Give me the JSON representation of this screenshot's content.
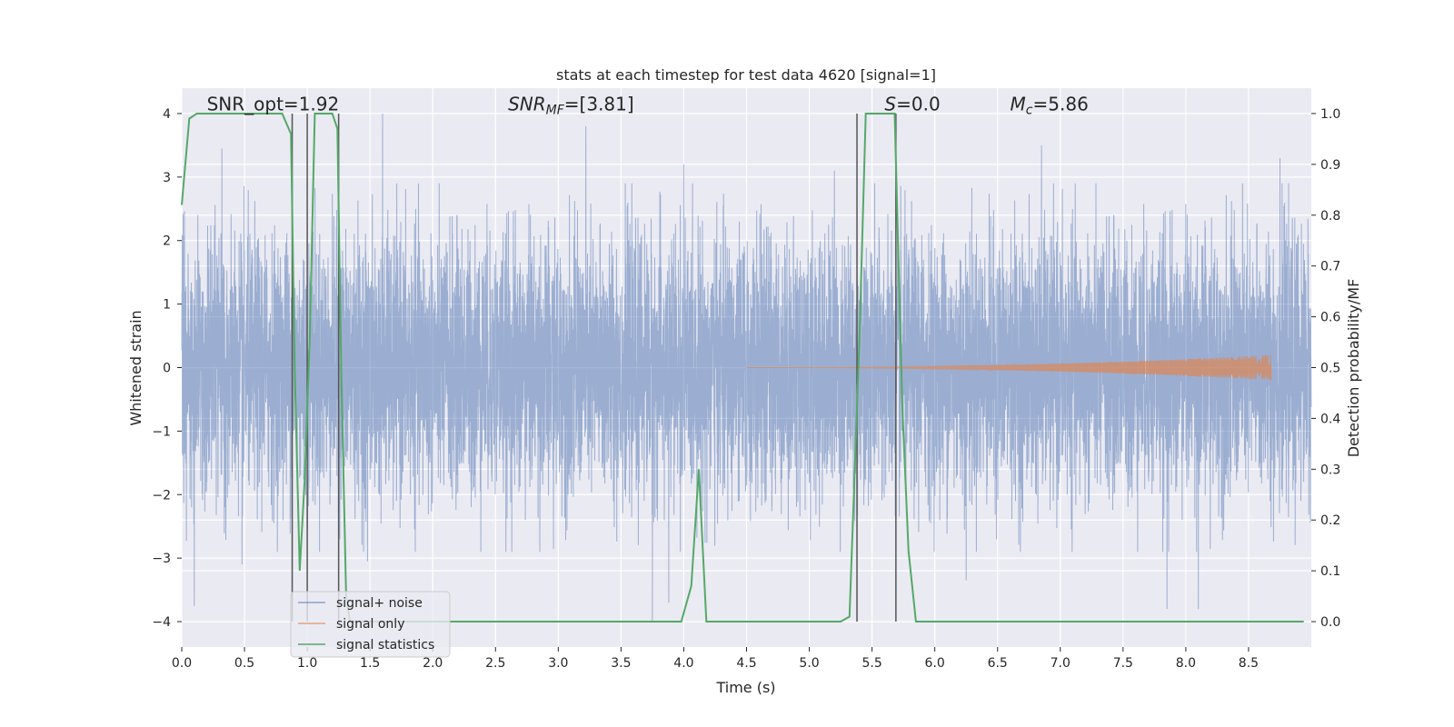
{
  "chart_data": {
    "type": "line",
    "title": "stats at each timestep for test data 4620 [signal=1]",
    "xlabel": "Time (s)",
    "ylabel": "Whitened strain",
    "ylabel_right": "Detection probability/MF",
    "xlim": [
      0,
      9
    ],
    "ylim": [
      -4.4,
      4.4
    ],
    "ylim_right": [
      -0.05,
      1.05
    ],
    "x_ticks": [
      0.0,
      0.5,
      1.0,
      1.5,
      2.0,
      2.5,
      3.0,
      3.5,
      4.0,
      4.5,
      5.0,
      5.5,
      6.0,
      6.5,
      7.0,
      7.5,
      8.0,
      8.5
    ],
    "x_tick_labels": [
      "0.0",
      "0.5",
      "1.0",
      "1.5",
      "2.0",
      "2.5",
      "3.0",
      "3.5",
      "4.0",
      "4.5",
      "5.0",
      "5.5",
      "6.0",
      "6.5",
      "7.0",
      "7.5",
      "8.0",
      "8.5"
    ],
    "y_ticks": [
      -4,
      -3,
      -2,
      -1,
      0,
      1,
      2,
      3,
      4
    ],
    "y_tick_labels": [
      "−4",
      "−3",
      "−2",
      "−1",
      "0",
      "1",
      "2",
      "3",
      "4"
    ],
    "y_ticks_right": [
      0.0,
      0.1,
      0.2,
      0.3,
      0.4,
      0.5,
      0.6,
      0.7,
      0.8,
      0.9,
      1.0
    ],
    "y_tick_labels_right": [
      "0.0",
      "0.1",
      "0.2",
      "0.3",
      "0.4",
      "0.5",
      "0.6",
      "0.7",
      "0.8",
      "0.9",
      "1.0"
    ],
    "grid": true,
    "legend_position": "lower-left",
    "annotations": [
      {
        "text": "SNR_opt=1.92",
        "x": 0.2,
        "y": 4.05
      },
      {
        "text": "SNR_MF=[3.81]",
        "x": 2.6,
        "y": 4.05
      },
      {
        "text": "S=0.0",
        "x": 5.6,
        "y": 4.05
      },
      {
        "text": "M_c=5.86",
        "x": 6.6,
        "y": 4.05
      }
    ],
    "series": [
      {
        "name": "signal+ noise",
        "axis": "left",
        "color": "#4c72b0",
        "style": "noise",
        "x_range": [
          0,
          9
        ],
        "sample_rate_hz": 1000,
        "amplitude_std": 1.0,
        "peaks": [
          {
            "x": 0.32,
            "y": 3.45
          },
          {
            "x": 0.1,
            "y": -3.75
          },
          {
            "x": 0.48,
            "y": -3.1
          },
          {
            "x": 1.6,
            "y": 4.0
          },
          {
            "x": 1.48,
            "y": -3.05
          },
          {
            "x": 3.22,
            "y": 3.8
          },
          {
            "x": 3.75,
            "y": -4.0
          },
          {
            "x": 3.88,
            "y": -3.7
          },
          {
            "x": 4.0,
            "y": 3.2
          },
          {
            "x": 5.2,
            "y": 3.1
          },
          {
            "x": 6.85,
            "y": 3.5
          },
          {
            "x": 7.85,
            "y": -3.8
          },
          {
            "x": 8.1,
            "y": -3.8
          },
          {
            "x": 8.75,
            "y": 3.3
          },
          {
            "x": 6.25,
            "y": -3.35
          }
        ]
      },
      {
        "name": "signal only",
        "axis": "left",
        "color": "#dd8452",
        "style": "chirp",
        "x_start": 4.5,
        "x_end": 8.68,
        "max_amplitude": 0.2
      },
      {
        "name": "signal statistics",
        "axis": "right",
        "color": "#55a868",
        "style": "line",
        "x": [
          0.0,
          0.06,
          0.12,
          0.3,
          0.5,
          0.8,
          0.87,
          0.9,
          0.94,
          0.98,
          1.02,
          1.06,
          1.1,
          1.15,
          1.2,
          1.24,
          1.27,
          1.31,
          1.34,
          1.4,
          2.0,
          3.0,
          3.98,
          4.06,
          4.12,
          4.18,
          4.3,
          4.8,
          5.25,
          5.32,
          5.4,
          5.45,
          5.6,
          5.68,
          5.74,
          5.79,
          5.85,
          6.2,
          7.0,
          8.0,
          8.6,
          8.94
        ],
        "y": [
          0.82,
          0.99,
          1.0,
          1.0,
          1.0,
          1.0,
          0.96,
          0.5,
          0.1,
          0.28,
          0.56,
          1.0,
          1.0,
          1.0,
          1.0,
          0.97,
          0.5,
          0.05,
          0.0,
          0.0,
          0.0,
          0.0,
          0.0,
          0.07,
          0.3,
          0.0,
          0.0,
          0.0,
          0.0,
          0.01,
          0.56,
          1.0,
          1.0,
          1.0,
          0.43,
          0.14,
          0.0,
          0.0,
          0.0,
          0.0,
          0.0,
          0.0
        ]
      }
    ],
    "vlines": [
      0.88,
      1.0,
      1.25,
      5.38,
      5.69
    ],
    "vline_range": [
      0.0,
      1.0
    ],
    "colors": {
      "axes_bg": "#eaeaf2",
      "grid": "#ffffff",
      "vline": "#555555",
      "text": "#262626"
    }
  }
}
